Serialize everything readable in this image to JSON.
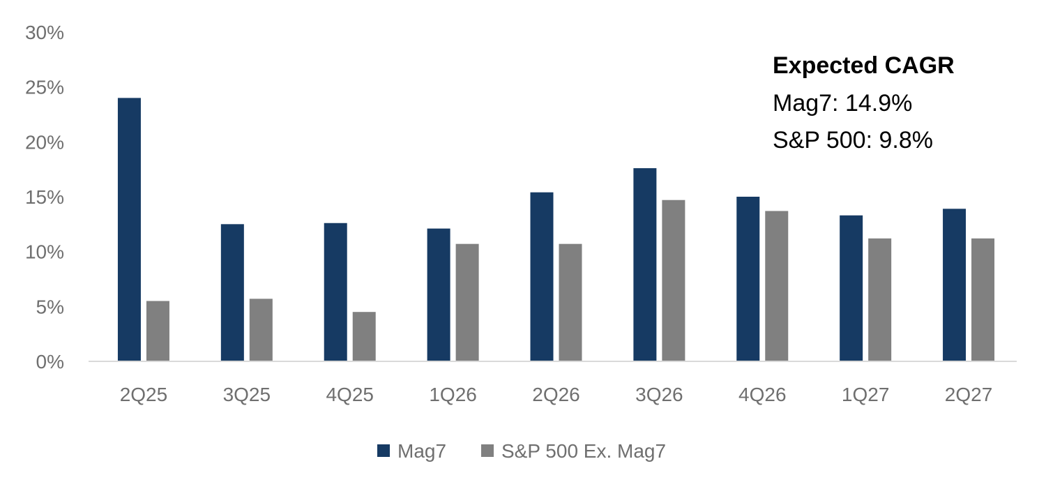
{
  "chart_data": {
    "type": "bar",
    "categories": [
      "2Q25",
      "3Q25",
      "4Q25",
      "1Q26",
      "2Q26",
      "3Q26",
      "4Q26",
      "1Q27",
      "2Q27"
    ],
    "series": [
      {
        "name": "Mag7",
        "color": "#163a63",
        "values": [
          24.0,
          12.5,
          12.6,
          12.1,
          15.4,
          17.6,
          15.0,
          13.3,
          13.9
        ]
      },
      {
        "name": "S&P 500 Ex. Mag7",
        "color": "#808080",
        "values": [
          5.5,
          5.7,
          4.5,
          10.7,
          10.7,
          14.7,
          13.7,
          11.2,
          11.2
        ]
      }
    ],
    "ylim": [
      0,
      30
    ],
    "yticks": [
      0,
      5,
      10,
      15,
      20,
      25,
      30
    ],
    "ytick_labels": [
      "0%",
      "5%",
      "10%",
      "15%",
      "20%",
      "25%",
      "30%"
    ],
    "title": "",
    "xlabel": "",
    "ylabel": "",
    "grid": false,
    "legend_position": "bottom-center",
    "annotation": {
      "title": "Expected CAGR",
      "lines": [
        "Mag7: 14.9%",
        "S&P 500: 9.8%"
      ]
    }
  }
}
